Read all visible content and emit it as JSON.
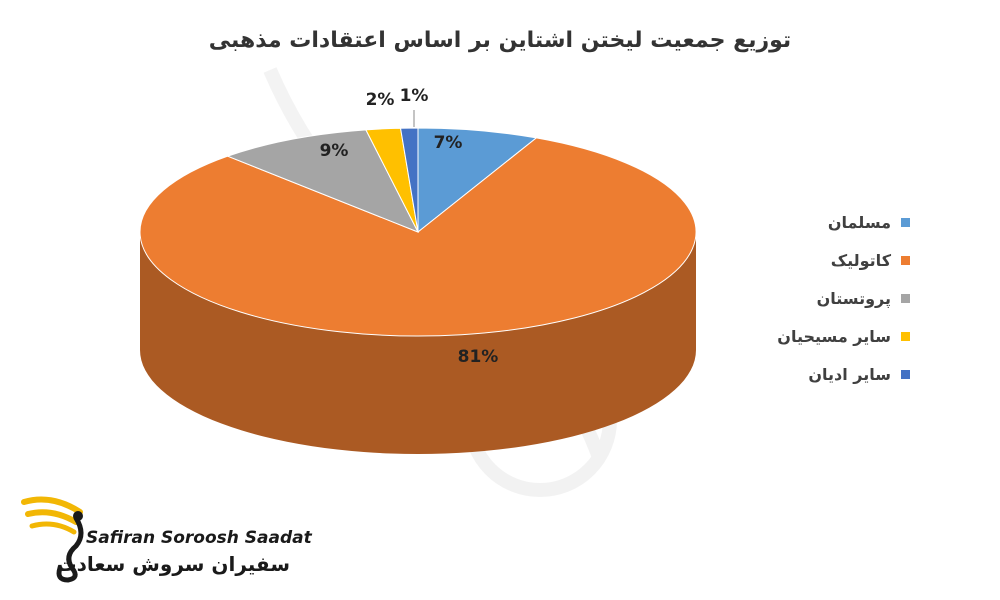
{
  "chart_data": {
    "type": "pie",
    "title": "توزیع جمعیت لیختن اشتاین بر اساس اعتقادات مذهبی",
    "legend_position": "right",
    "slices": [
      {
        "name": "مسلمان",
        "value": 7,
        "label": "7%",
        "color": "#5B9BD5"
      },
      {
        "name": "کاتولیک",
        "value": 81,
        "label": "81%",
        "color": "#ED7D31"
      },
      {
        "name": "پروتستان",
        "value": 9,
        "label": "9%",
        "color": "#A5A5A5"
      },
      {
        "name": "سایر مسیحیان",
        "value": 2,
        "label": "2%",
        "color": "#FFC000"
      },
      {
        "name": "سایر ادیان",
        "value": 1,
        "label": "1%",
        "color": "#4472C4"
      }
    ]
  },
  "branding": {
    "logo_latin": "Safiran Soroosh Saadat",
    "logo_farsi": "سفیران سروش سعادت",
    "icon": "phoenix-logo-icon",
    "gold": "#F2B705"
  }
}
